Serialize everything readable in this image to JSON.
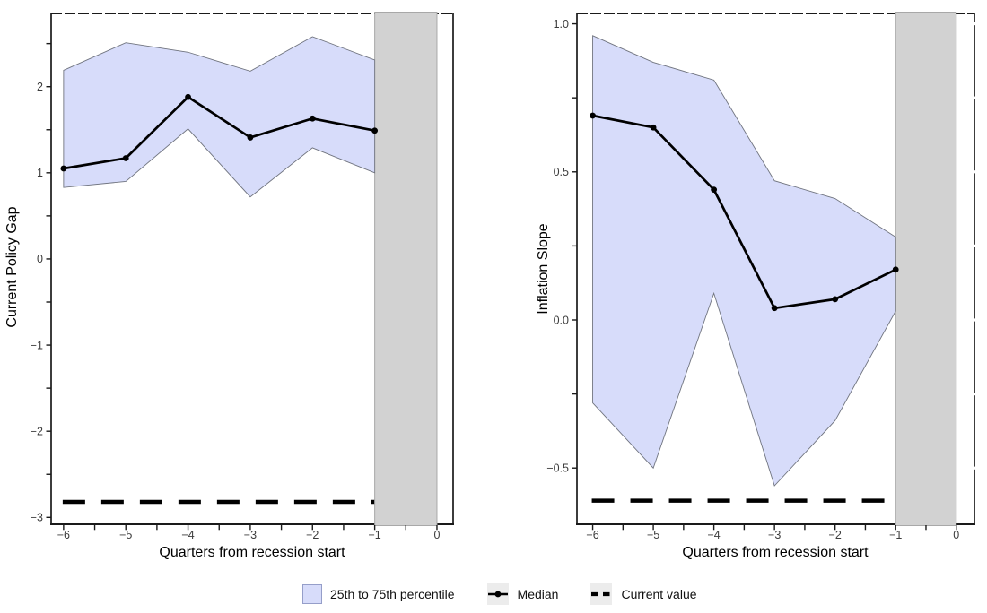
{
  "legend": {
    "items": [
      {
        "label": "25th to 75th percentile",
        "key": "ribbon-swatch"
      },
      {
        "label": "Median",
        "key": "line-with-dot"
      },
      {
        "label": "Current value",
        "key": "dashed-line"
      }
    ]
  },
  "colors": {
    "ribbon_fill": "#d7dcfa",
    "ribbon_edge": "#70747f",
    "median_line": "#000000",
    "current_value_line": "#000000",
    "recession_band": "#d2d2d2",
    "recession_band_edge": "#a8a8a8",
    "axis": "#1a1a1a",
    "tick_label": "#3c3c3c",
    "legend_key_bg": "#ececec"
  },
  "chart_data": [
    {
      "type": "area",
      "panel": "left",
      "title": "",
      "xlabel": "Quarters from recession start",
      "ylabel": "Current Policy Gap",
      "x": [
        -6,
        -5,
        -4,
        -3,
        -2,
        -1
      ],
      "series": [
        {
          "name": "25th to 75th percentile",
          "type": "ribbon",
          "upper": [
            2.19,
            2.51,
            2.4,
            2.18,
            2.58,
            2.31
          ],
          "lower": [
            0.83,
            0.9,
            1.51,
            0.72,
            1.29,
            1.0
          ]
        },
        {
          "name": "Median",
          "type": "line_markers",
          "values": [
            1.05,
            1.17,
            1.88,
            1.41,
            1.63,
            1.49
          ]
        },
        {
          "name": "Current value",
          "type": "dashed_hline",
          "value": -2.82
        }
      ],
      "shaded_region": {
        "from": -1,
        "to": 0
      },
      "xlim": [
        -6.2,
        0.26
      ],
      "ylim": [
        -3.08,
        2.85
      ],
      "xticks": {
        "major": [
          -6,
          -5,
          -4,
          -3,
          -2,
          -1,
          0
        ],
        "labels": [
          "−6",
          "−5",
          "−4",
          "−3",
          "−2",
          "−1",
          "0"
        ],
        "minor": [
          -5.5,
          -4.5,
          -3.5,
          -2.5,
          -1.5,
          -0.5
        ]
      },
      "yticks": {
        "major": [
          2,
          1,
          0,
          -1,
          -2,
          -3
        ],
        "labels": [
          "2",
          "1",
          "0",
          "−1",
          "−2",
          "−3"
        ],
        "minor": [
          2.5,
          1.5,
          0.5,
          -0.5,
          -1.5,
          -2.5
        ]
      },
      "grid": false,
      "legend_position": "bottom"
    },
    {
      "type": "area",
      "panel": "right",
      "title": "",
      "xlabel": "Quarters from recession start",
      "ylabel": "Inflation Slope",
      "x": [
        -6,
        -5,
        -4,
        -3,
        -2,
        -1
      ],
      "series": [
        {
          "name": "25th to 75th percentile",
          "type": "ribbon",
          "upper": [
            0.96,
            0.87,
            0.81,
            0.47,
            0.41,
            0.28
          ],
          "lower": [
            -0.28,
            -0.5,
            0.09,
            -0.56,
            -0.34,
            0.03
          ]
        },
        {
          "name": "Median",
          "type": "line_markers",
          "values": [
            0.69,
            0.65,
            0.44,
            0.04,
            0.07,
            0.17
          ]
        },
        {
          "name": "Current value",
          "type": "dashed_hline",
          "value": -0.61
        }
      ],
      "shaded_region": {
        "from": -1,
        "to": 0
      },
      "xlim": [
        -6.26,
        0.3
      ],
      "ylim": [
        -0.69,
        1.035
      ],
      "xticks": {
        "major": [
          -6,
          -5,
          -4,
          -3,
          -2,
          -1,
          0
        ],
        "labels": [
          "−6",
          "−5",
          "−4",
          "−3",
          "−2",
          "−1",
          "0"
        ],
        "minor": [
          -5.5,
          -4.5,
          -3.5,
          -2.5,
          -1.5,
          -0.5
        ]
      },
      "yticks": {
        "major": [
          1.0,
          0.5,
          0.0,
          -0.5
        ],
        "labels": [
          "1.0",
          "0.5",
          "0.0",
          "−0.5"
        ],
        "minor": [
          0.75,
          0.25,
          -0.25
        ]
      },
      "grid": false,
      "legend_position": "bottom"
    }
  ]
}
